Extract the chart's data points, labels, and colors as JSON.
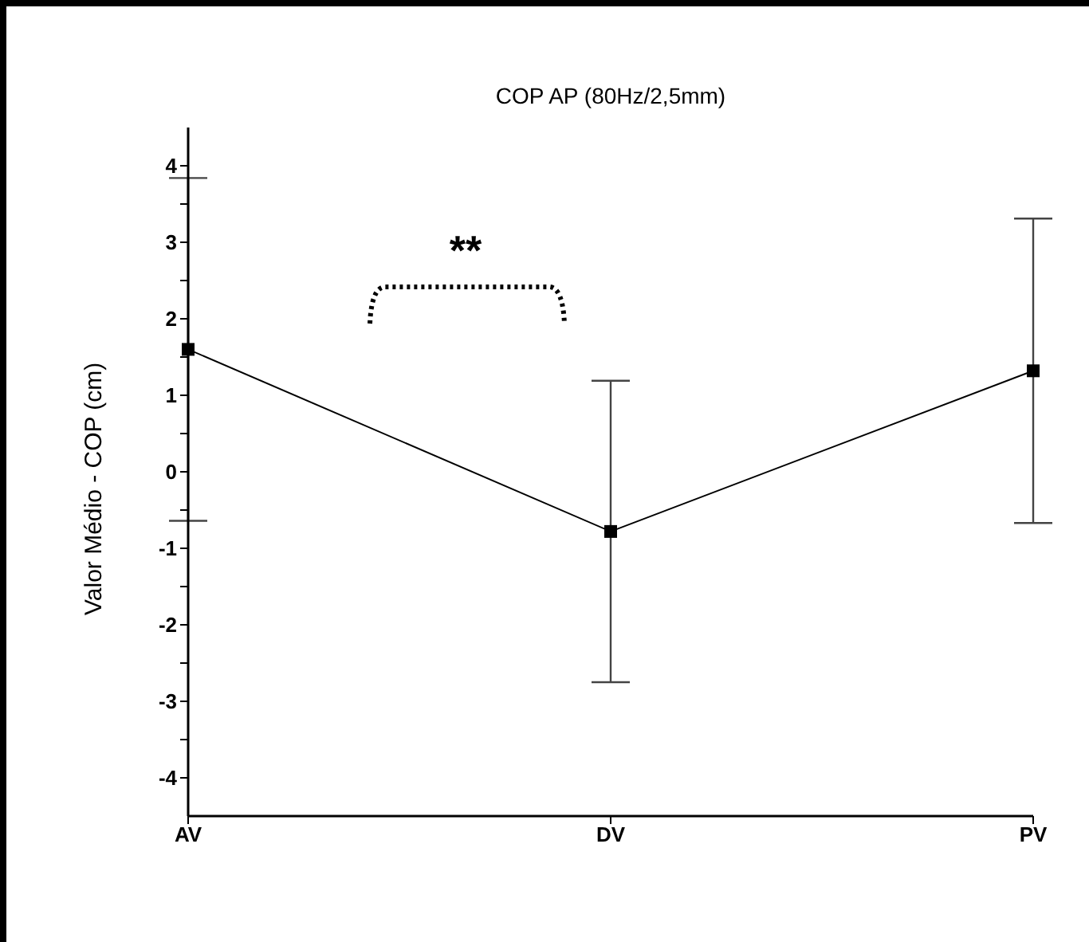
{
  "chart_data": {
    "type": "line",
    "title": "COP AP (80Hz/2,5mm)",
    "ylabel": "Valor Médio - COP (cm)",
    "categories": [
      "AV",
      "DV",
      "PV"
    ],
    "values": [
      1.6,
      -0.78,
      1.32
    ],
    "errors": [
      2.24,
      1.97,
      1.99
    ],
    "color": "#000000",
    "marker": "square",
    "ylim": [
      -4.5,
      4.5
    ],
    "yticks": [
      -4,
      {
        "value": -3.5,
        "label": null
      },
      -3,
      {
        "value": -2.5,
        "label": null
      },
      -2,
      {
        "value": -1.5,
        "label": null
      },
      -1,
      {
        "value": -0.5,
        "label": null
      },
      0,
      {
        "value": 0.5,
        "label": null
      },
      1,
      {
        "value": 1.5,
        "label": null
      },
      2,
      {
        "value": 2.5,
        "label": null
      },
      3,
      {
        "value": 3.5,
        "label": null
      },
      4
    ],
    "annotations": [
      "**"
    ]
  }
}
